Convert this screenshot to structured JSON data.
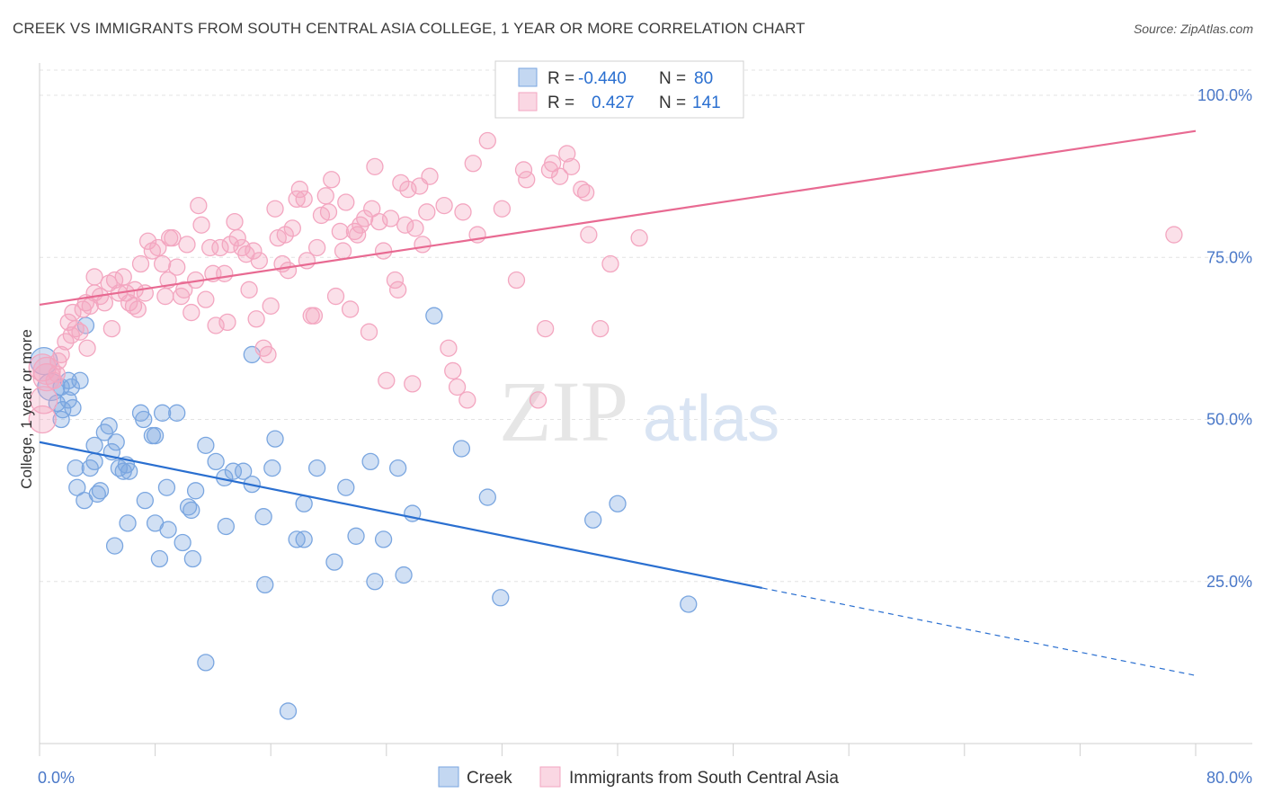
{
  "title": "CREEK VS IMMIGRANTS FROM SOUTH CENTRAL ASIA COLLEGE, 1 YEAR OR MORE CORRELATION CHART",
  "source": "Source: ZipAtlas.com",
  "watermark": {
    "zip": "ZIP",
    "atlas": "atlas"
  },
  "chart_data": {
    "type": "scatter",
    "xlabel": "",
    "ylabel": "College, 1 year or more",
    "xlim": [
      0,
      80
    ],
    "ylim": [
      0,
      105
    ],
    "x_tick_labels": {
      "left": "0.0%",
      "right": "80.0%"
    },
    "y_ticks": [
      {
        "value": 100,
        "label": "100.0%"
      },
      {
        "value": 75,
        "label": "75.0%"
      },
      {
        "value": 50,
        "label": "50.0%"
      },
      {
        "value": 25,
        "label": "25.0%"
      }
    ],
    "grid": "horizontal dashed",
    "legend_position": "top-center",
    "series": [
      {
        "name": "Creek",
        "color": "#7aa6e0",
        "line_color": "#2a6fd0",
        "R": "-0.440",
        "N": "80",
        "trend": {
          "x0": 0,
          "y0": 46.5,
          "x1": 50,
          "y1": 24.0,
          "dash_to_x": 80,
          "dash_to_y": 10.5
        },
        "points": [
          [
            0.3,
            59
          ],
          [
            0.8,
            55
          ],
          [
            1.2,
            52.5
          ],
          [
            1.5,
            50
          ],
          [
            1.6,
            51.5
          ],
          [
            1.5,
            55
          ],
          [
            2.0,
            56
          ],
          [
            2.2,
            55
          ],
          [
            2.0,
            53
          ],
          [
            2.3,
            51.8
          ],
          [
            2.8,
            56
          ],
          [
            3.2,
            64.5
          ],
          [
            2.5,
            42.5
          ],
          [
            2.6,
            39.5
          ],
          [
            3.1,
            37.5
          ],
          [
            3.5,
            42.5
          ],
          [
            3.8,
            46
          ],
          [
            3.8,
            43.5
          ],
          [
            4.0,
            38.5
          ],
          [
            4.2,
            39
          ],
          [
            4.5,
            48
          ],
          [
            4.8,
            49
          ],
          [
            5.0,
            45
          ],
          [
            5.3,
            46.5
          ],
          [
            5.5,
            42.5
          ],
          [
            5.8,
            42
          ],
          [
            6.0,
            43
          ],
          [
            6.2,
            42
          ],
          [
            6.1,
            34
          ],
          [
            5.2,
            30.5
          ],
          [
            7.0,
            51
          ],
          [
            7.2,
            50
          ],
          [
            7.3,
            37.5
          ],
          [
            7.8,
            47.5
          ],
          [
            8.0,
            47.5
          ],
          [
            8.0,
            34
          ],
          [
            8.3,
            28.5
          ],
          [
            8.8,
            39.5
          ],
          [
            8.9,
            33
          ],
          [
            8.5,
            51
          ],
          [
            9.5,
            51
          ],
          [
            9.9,
            31
          ],
          [
            10.3,
            36.5
          ],
          [
            10.5,
            36
          ],
          [
            10.6,
            28.5
          ],
          [
            10.8,
            39
          ],
          [
            11.5,
            46
          ],
          [
            12.2,
            43.5
          ],
          [
            12.8,
            41
          ],
          [
            12.9,
            33.5
          ],
          [
            13.4,
            42
          ],
          [
            14.1,
            42
          ],
          [
            14.7,
            40
          ],
          [
            14.7,
            60
          ],
          [
            15.5,
            35
          ],
          [
            15.6,
            24.5
          ],
          [
            16.1,
            42.5
          ],
          [
            16.3,
            47
          ],
          [
            17.8,
            31.5
          ],
          [
            18.3,
            31.5
          ],
          [
            18.3,
            37
          ],
          [
            19.2,
            42.5
          ],
          [
            20.4,
            28
          ],
          [
            21.2,
            39.5
          ],
          [
            21.9,
            32
          ],
          [
            22.9,
            43.5
          ],
          [
            23.2,
            25
          ],
          [
            23.8,
            31.5
          ],
          [
            24.8,
            42.5
          ],
          [
            25.2,
            26
          ],
          [
            25.8,
            35.5
          ],
          [
            27.3,
            66
          ],
          [
            29.2,
            45.5
          ],
          [
            31.0,
            38
          ],
          [
            31.9,
            22.5
          ],
          [
            38.3,
            34.5
          ],
          [
            40.0,
            37
          ],
          [
            44.9,
            21.5
          ],
          [
            17.2,
            5
          ],
          [
            11.5,
            12.5
          ]
        ]
      },
      {
        "name": "Immigrants from South Central Asia",
        "color": "#f3a6c0",
        "line_color": "#e86a92",
        "R": "0.427",
        "N": "141",
        "trend": {
          "x0": 0,
          "y0": 67.7,
          "x1": 80,
          "y1": 94.5
        },
        "points": [
          [
            0.2,
            50
          ],
          [
            0.3,
            53
          ],
          [
            0.5,
            56.5
          ],
          [
            0.5,
            57.5
          ],
          [
            1.0,
            56
          ],
          [
            1.3,
            59
          ],
          [
            1.2,
            57
          ],
          [
            1.5,
            60
          ],
          [
            1.8,
            62
          ],
          [
            2.0,
            65
          ],
          [
            2.2,
            63
          ],
          [
            2.5,
            64
          ],
          [
            2.3,
            66.5
          ],
          [
            2.8,
            63.5
          ],
          [
            3.0,
            67
          ],
          [
            3.2,
            68
          ],
          [
            3.3,
            61
          ],
          [
            3.5,
            67.5
          ],
          [
            3.8,
            69.5
          ],
          [
            3.8,
            72
          ],
          [
            4.2,
            69
          ],
          [
            4.5,
            68
          ],
          [
            4.8,
            71
          ],
          [
            5.0,
            64
          ],
          [
            5.2,
            71.5
          ],
          [
            5.5,
            69.5
          ],
          [
            5.8,
            72
          ],
          [
            6.0,
            69.5
          ],
          [
            6.2,
            68
          ],
          [
            6.5,
            67.5
          ],
          [
            6.6,
            70
          ],
          [
            6.8,
            67
          ],
          [
            7.0,
            74
          ],
          [
            7.3,
            69.5
          ],
          [
            7.5,
            77.5
          ],
          [
            7.8,
            76
          ],
          [
            8.2,
            76.5
          ],
          [
            8.5,
            74
          ],
          [
            8.7,
            69
          ],
          [
            8.9,
            71.5
          ],
          [
            9.0,
            78
          ],
          [
            9.2,
            78
          ],
          [
            9.5,
            73.5
          ],
          [
            9.8,
            69
          ],
          [
            10.0,
            70
          ],
          [
            10.2,
            77
          ],
          [
            10.5,
            66.5
          ],
          [
            10.8,
            71.5
          ],
          [
            11.0,
            83
          ],
          [
            11.2,
            80
          ],
          [
            11.5,
            68.5
          ],
          [
            11.8,
            76.5
          ],
          [
            12.0,
            72.5
          ],
          [
            12.2,
            64.5
          ],
          [
            12.5,
            76.5
          ],
          [
            12.8,
            72.5
          ],
          [
            13.0,
            65
          ],
          [
            13.2,
            77
          ],
          [
            13.5,
            80.5
          ],
          [
            13.7,
            78
          ],
          [
            14.0,
            76.5
          ],
          [
            14.3,
            75.5
          ],
          [
            14.5,
            70
          ],
          [
            14.8,
            76
          ],
          [
            15.0,
            65.5
          ],
          [
            15.2,
            74.5
          ],
          [
            15.5,
            61
          ],
          [
            15.8,
            60
          ],
          [
            16.0,
            67.5
          ],
          [
            16.3,
            82.5
          ],
          [
            16.5,
            78
          ],
          [
            16.8,
            74
          ],
          [
            17.0,
            78.5
          ],
          [
            17.2,
            73
          ],
          [
            17.5,
            79.5
          ],
          [
            17.8,
            84
          ],
          [
            18.0,
            85.5
          ],
          [
            18.3,
            84
          ],
          [
            18.5,
            74.5
          ],
          [
            18.8,
            66
          ],
          [
            19.0,
            66
          ],
          [
            19.2,
            76.5
          ],
          [
            19.5,
            81.5
          ],
          [
            19.8,
            84.5
          ],
          [
            20.0,
            82
          ],
          [
            20.2,
            87
          ],
          [
            20.5,
            69
          ],
          [
            20.8,
            79
          ],
          [
            21.0,
            76
          ],
          [
            21.2,
            83.5
          ],
          [
            21.5,
            67
          ],
          [
            21.8,
            79
          ],
          [
            22.0,
            78.5
          ],
          [
            22.2,
            80
          ],
          [
            22.5,
            81
          ],
          [
            22.8,
            63.5
          ],
          [
            23.0,
            82.5
          ],
          [
            23.2,
            89
          ],
          [
            23.5,
            80.5
          ],
          [
            23.8,
            76
          ],
          [
            24.0,
            56
          ],
          [
            24.3,
            81
          ],
          [
            24.6,
            71.5
          ],
          [
            24.8,
            70
          ],
          [
            25.0,
            86.5
          ],
          [
            25.3,
            80
          ],
          [
            25.5,
            85.5
          ],
          [
            25.8,
            55.5
          ],
          [
            26.0,
            79.5
          ],
          [
            26.3,
            86
          ],
          [
            26.5,
            77
          ],
          [
            26.8,
            82
          ],
          [
            27.0,
            87.5
          ],
          [
            28.0,
            83
          ],
          [
            28.3,
            61
          ],
          [
            28.6,
            57.5
          ],
          [
            28.9,
            55
          ],
          [
            29.3,
            82
          ],
          [
            29.6,
            53
          ],
          [
            30.0,
            89.5
          ],
          [
            30.3,
            78.5
          ],
          [
            31.0,
            93
          ],
          [
            32.0,
            82.5
          ],
          [
            33.0,
            71.5
          ],
          [
            33.5,
            88.5
          ],
          [
            33.7,
            87
          ],
          [
            34.5,
            53
          ],
          [
            35.0,
            64
          ],
          [
            35.3,
            88.5
          ],
          [
            35.5,
            89.5
          ],
          [
            36.0,
            87.5
          ],
          [
            36.5,
            91
          ],
          [
            36.8,
            89
          ],
          [
            37.5,
            85.5
          ],
          [
            37.8,
            85
          ],
          [
            38.0,
            78.5
          ],
          [
            38.8,
            64
          ],
          [
            39.5,
            74
          ],
          [
            41.5,
            78
          ],
          [
            78.5,
            78.5
          ],
          [
            0.2,
            58
          ]
        ]
      }
    ]
  }
}
